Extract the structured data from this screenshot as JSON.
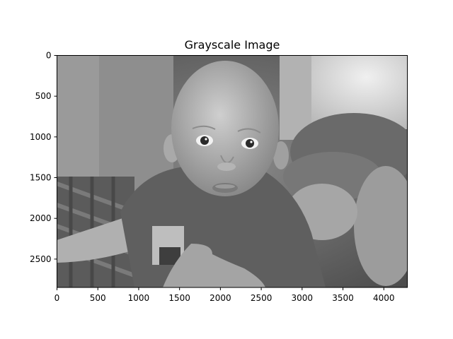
{
  "chart_data": {
    "type": "image",
    "title": "Grayscale Image",
    "xlabel": "",
    "ylabel": "",
    "x_range": [
      0,
      4288
    ],
    "y_range": [
      0,
      2848
    ],
    "y_inverted": true,
    "x_ticks": [
      0,
      500,
      1000,
      1500,
      2000,
      2500,
      3000,
      3500,
      4000
    ],
    "y_ticks": [
      0,
      500,
      1000,
      1500,
      2000,
      2500
    ],
    "x_tick_labels": [
      "0",
      "500",
      "1000",
      "1500",
      "2000",
      "2500",
      "3000",
      "3500",
      "4000"
    ],
    "y_tick_labels": [
      "0",
      "500",
      "1000",
      "1500",
      "2000",
      "2500"
    ],
    "grid": false,
    "colormap": "gray",
    "image_subject": "grayscale photo of a baby held up by an adult hand"
  }
}
